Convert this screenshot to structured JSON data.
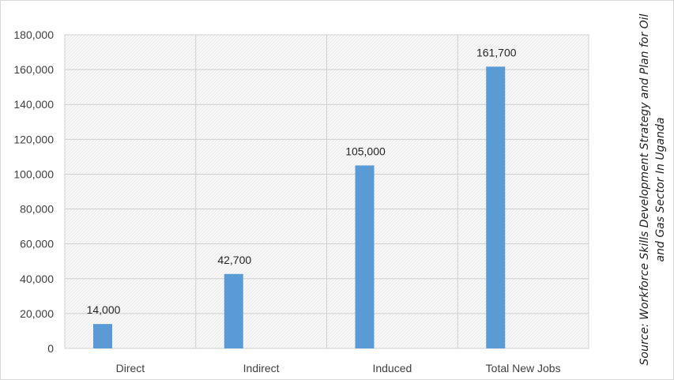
{
  "chart_data": {
    "type": "bar",
    "categories": [
      "Direct",
      "Indirect",
      "Induced",
      "Total New Jobs"
    ],
    "values": [
      14000,
      42700,
      105000,
      161700
    ],
    "data_labels": [
      "14,000",
      "42,700",
      "105,000",
      "161,700"
    ],
    "ylim": [
      0,
      180000
    ],
    "yticks": [
      0,
      20000,
      40000,
      60000,
      80000,
      100000,
      120000,
      140000,
      160000,
      180000
    ],
    "ytick_labels": [
      "0",
      "20,000",
      "40,000",
      "60,000",
      "80,000",
      "100,000",
      "120,000",
      "140,000",
      "160,000",
      "180,000"
    ],
    "grid": true,
    "bar_color": "#5b9bd5"
  },
  "source": {
    "text": "Source: Workforce Skills Development Strategy and Plan for Oil and Gas Sector In Uganda"
  }
}
